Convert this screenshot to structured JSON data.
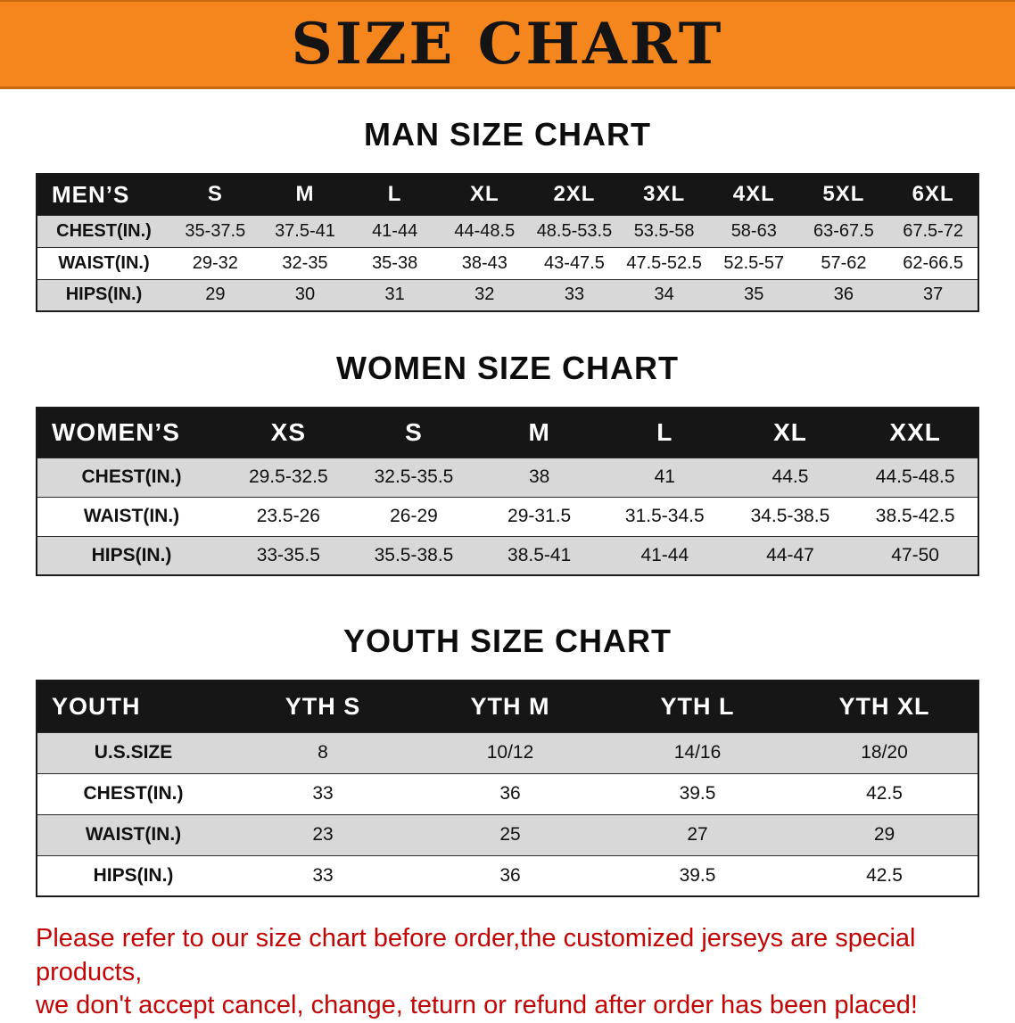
{
  "banner": {
    "title": "SIZE CHART",
    "bg_color": "#f5851d",
    "text_color": "#141414"
  },
  "sections": [
    {
      "heading": "MAN SIZE CHART",
      "table": {
        "label": "MEN’S",
        "columns": [
          "S",
          "M",
          "L",
          "XL",
          "2XL",
          "3XL",
          "4XL",
          "5XL",
          "6XL"
        ],
        "rows": [
          {
            "label": "CHEST(IN.)",
            "values": [
              "35-37.5",
              "37.5-41",
              "41-44",
              "44-48.5",
              "48.5-53.5",
              "53.5-58",
              "58-63",
              "63-67.5",
              "67.5-72"
            ]
          },
          {
            "label": "WAIST(IN.)",
            "values": [
              "29-32",
              "32-35",
              "35-38",
              "38-43",
              "43-47.5",
              "47.5-52.5",
              "52.5-57",
              "57-62",
              "62-66.5"
            ]
          },
          {
            "label": "HIPS(IN.)",
            "values": [
              "29",
              "30",
              "31",
              "32",
              "33",
              "34",
              "35",
              "36",
              "37"
            ]
          }
        ]
      }
    },
    {
      "heading": "WOMEN SIZE CHART",
      "table": {
        "label": "WOMEN’S",
        "columns": [
          "XS",
          "S",
          "M",
          "L",
          "XL",
          "XXL"
        ],
        "rows": [
          {
            "label": "CHEST(IN.)",
            "values": [
              "29.5-32.5",
              "32.5-35.5",
              "38",
              "41",
              "44.5",
              "44.5-48.5"
            ]
          },
          {
            "label": "WAIST(IN.)",
            "values": [
              "23.5-26",
              "26-29",
              "29-31.5",
              "31.5-34.5",
              "34.5-38.5",
              "38.5-42.5"
            ]
          },
          {
            "label": "HIPS(IN.)",
            "values": [
              "33-35.5",
              "35.5-38.5",
              "38.5-41",
              "41-44",
              "44-47",
              "47-50"
            ]
          }
        ]
      }
    },
    {
      "heading": "YOUTH SIZE CHART",
      "table": {
        "label": "YOUTH",
        "columns": [
          "YTH S",
          "YTH M",
          "YTH L",
          "YTH XL"
        ],
        "rows": [
          {
            "label": "U.S.SIZE",
            "values": [
              "8",
              "10/12",
              "14/16",
              "18/20"
            ]
          },
          {
            "label": "CHEST(IN.)",
            "values": [
              "33",
              "36",
              "39.5",
              "42.5"
            ]
          },
          {
            "label": "WAIST(IN.)",
            "values": [
              "23",
              "25",
              "27",
              "29"
            ]
          },
          {
            "label": "HIPS(IN.)",
            "values": [
              "33",
              "36",
              "39.5",
              "42.5"
            ]
          }
        ]
      }
    }
  ],
  "footer": {
    "line1": "Please refer to our size chart before order,the customized jerseys are special products,",
    "line2": "we don't accept cancel, change, teturn or refund after order has been placed!",
    "text_color": "#c40505"
  }
}
